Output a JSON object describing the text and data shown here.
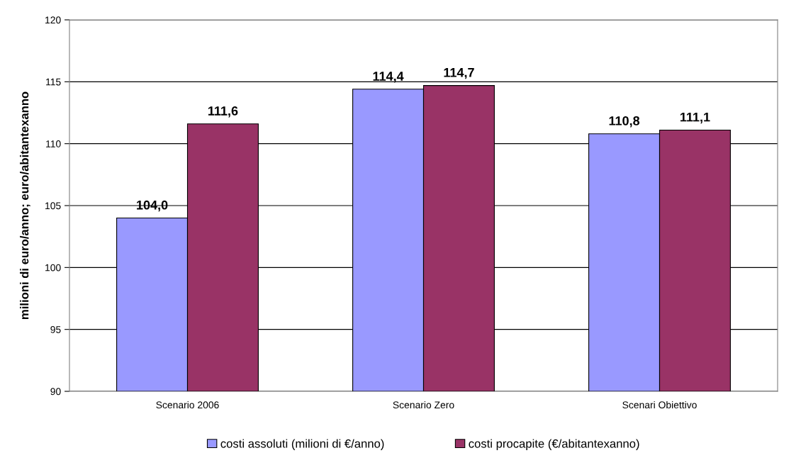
{
  "chart_data": {
    "type": "bar",
    "ylabel": "milioni di euro/anno; euro/abitantexanno",
    "categories": [
      "Scenario 2006",
      "Scenario Zero",
      "Scenari Obiettivo"
    ],
    "series": [
      {
        "name": "costi assoluti (milioni di €/anno)",
        "color": "#9999ff",
        "values": [
          104.0,
          114.4,
          110.8
        ],
        "value_labels": [
          "104,0",
          "114,4",
          "110,8"
        ]
      },
      {
        "name": "costi procapite (€/abitantexanno)",
        "color": "#993366",
        "values": [
          111.6,
          114.7,
          111.1
        ],
        "value_labels": [
          "111,6",
          "114,7",
          "111,1"
        ]
      }
    ],
    "ylim": [
      90,
      120
    ],
    "yticks": [
      90,
      95,
      100,
      105,
      110,
      115,
      120
    ],
    "grid": "y",
    "legend": "bottom"
  }
}
